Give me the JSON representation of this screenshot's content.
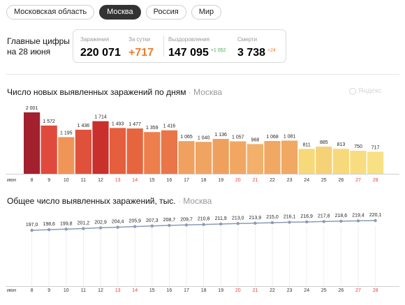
{
  "tabs": [
    {
      "label": "Московская область",
      "active": false
    },
    {
      "label": "Москва",
      "active": true
    },
    {
      "label": "Россия",
      "active": false
    },
    {
      "label": "Мир",
      "active": false
    }
  ],
  "summary": {
    "title_line1": "Главные цифры",
    "title_line2": "на 28 июня",
    "infected": {
      "label": "Заражения",
      "value": "220 071"
    },
    "daily": {
      "label": "За сутки",
      "value": "+717"
    },
    "recovered": {
      "label": "Выздоровления",
      "value": "147 095",
      "delta": "+1 052"
    },
    "deaths": {
      "label": "Смерти",
      "value": "3 738",
      "delta": "+24"
    }
  },
  "watermark": "Яндекс",
  "colors": {
    "orange_accent": "#f07d2a",
    "green_accent": "#3fae4f",
    "weekend_red": "#e0463c",
    "line": "#8a9bb5"
  },
  "chart_data": [
    {
      "type": "bar",
      "title": "Число новых выявленных заражений по дням",
      "subtitle": "Москва",
      "xlabel": "июн",
      "categories": [
        "8",
        "9",
        "10",
        "11",
        "12",
        "13",
        "14",
        "15",
        "16",
        "17",
        "18",
        "19",
        "20",
        "21",
        "22",
        "23",
        "24",
        "25",
        "26",
        "27",
        "28"
      ],
      "weekend_categories": [
        "13",
        "14",
        "20",
        "21",
        "27",
        "28"
      ],
      "values": [
        2001,
        1572,
        1195,
        1436,
        1714,
        1493,
        1477,
        1359,
        1416,
        1065,
        1040,
        1136,
        1057,
        968,
        1068,
        1081,
        811,
        885,
        813,
        750,
        717
      ],
      "value_labels": [
        "2 001",
        "1 572",
        "1 195",
        "1 436",
        "1 714",
        "1 493",
        "1 477",
        "1 359",
        "1 416",
        "1 065",
        "1 040",
        "1 136",
        "1 057",
        "968",
        "1 068",
        "1 081",
        "811",
        "885",
        "813",
        "750",
        "717"
      ],
      "bar_colors": [
        "#a3202e",
        "#e04a3c",
        "#ef9558",
        "#e0513c",
        "#c9302c",
        "#e55f3e",
        "#e6653f",
        "#ec7f4c",
        "#ea7548",
        "#f0a15f",
        "#f0a462",
        "#efa05d",
        "#f1a762",
        "#f2b06a",
        "#f1a863",
        "#f0a862",
        "#f6d978",
        "#f6d277",
        "#f7d97b",
        "#f8dd80",
        "#f8e085"
      ],
      "ylim": [
        0,
        2001
      ]
    },
    {
      "type": "line",
      "title": "Общее число выявленных заражений, тыс.",
      "subtitle": "Москва",
      "xlabel": "июн",
      "categories": [
        "8",
        "9",
        "10",
        "11",
        "12",
        "13",
        "14",
        "15",
        "16",
        "17",
        "18",
        "19",
        "20",
        "21",
        "22",
        "23",
        "24",
        "25",
        "26",
        "27",
        "28"
      ],
      "weekend_categories": [
        "13",
        "14",
        "20",
        "21",
        "27",
        "28"
      ],
      "values": [
        197.0,
        198.6,
        199.8,
        201.2,
        202.9,
        204.4,
        205.9,
        207.3,
        208.7,
        209.7,
        210.8,
        211.9,
        213.0,
        213.9,
        215.0,
        216.1,
        216.9,
        217.8,
        218.6,
        219.4,
        220.1
      ],
      "value_labels": [
        "197,0",
        "198,6",
        "199,8",
        "201,2",
        "202,9",
        "204,4",
        "205,9",
        "207,3",
        "208,7",
        "209,7",
        "210,8",
        "211,9",
        "213,0",
        "213,9",
        "215,0",
        "216,1",
        "216,9",
        "217,8",
        "218,6",
        "219,4",
        "220,1"
      ]
    }
  ]
}
